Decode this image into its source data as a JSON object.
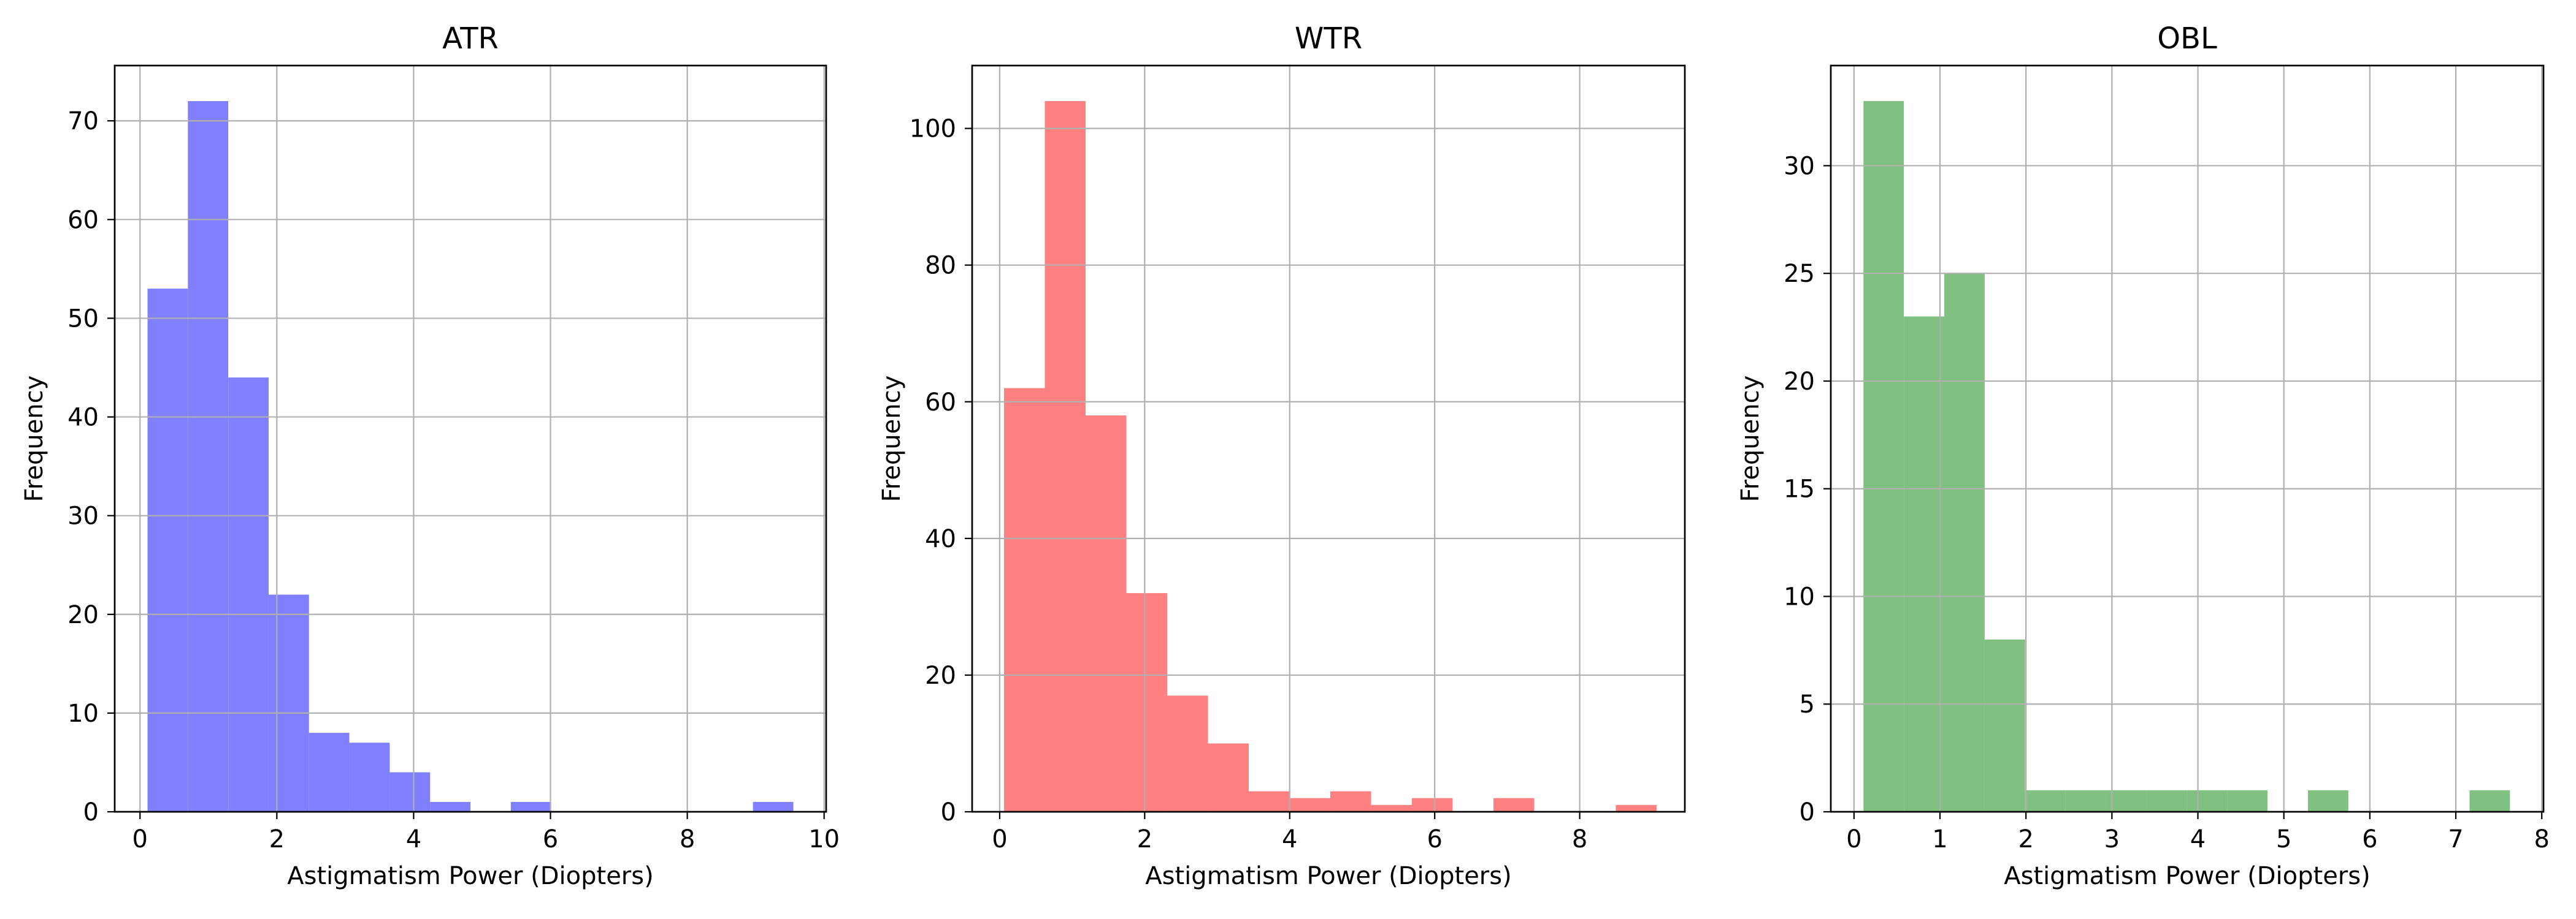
{
  "chart_data": [
    {
      "type": "bar",
      "title": "ATR",
      "xlabel": "Astigmatism Power (Diopters)",
      "ylabel": "Frequency",
      "xlim": [
        -0.37,
        10.03
      ],
      "ylim": [
        0,
        75.6
      ],
      "xticks": [
        0,
        2,
        4,
        6,
        8,
        10
      ],
      "yticks": [
        0,
        10,
        20,
        30,
        40,
        50,
        60,
        70
      ],
      "grid": true,
      "color": "#8080ff",
      "bin_width": 0.59,
      "bins": [
        {
          "x": 0.11,
          "value": 53
        },
        {
          "x": 0.7,
          "value": 72
        },
        {
          "x": 1.29,
          "value": 44
        },
        {
          "x": 1.88,
          "value": 22
        },
        {
          "x": 2.47,
          "value": 8
        },
        {
          "x": 3.06,
          "value": 7
        },
        {
          "x": 3.65,
          "value": 4
        },
        {
          "x": 4.24,
          "value": 1
        },
        {
          "x": 4.83,
          "value": 0
        },
        {
          "x": 5.42,
          "value": 1
        },
        {
          "x": 6.01,
          "value": 0
        },
        {
          "x": 6.6,
          "value": 0
        },
        {
          "x": 7.19,
          "value": 0
        },
        {
          "x": 7.78,
          "value": 0
        },
        {
          "x": 8.37,
          "value": 0
        },
        {
          "x": 8.96,
          "value": 1
        }
      ]
    },
    {
      "type": "bar",
      "title": "WTR",
      "xlabel": "Astigmatism Power (Diopters)",
      "ylabel": "Frequency",
      "xlim": [
        -0.38,
        9.45
      ],
      "ylim": [
        0,
        109.2
      ],
      "xticks": [
        0,
        2,
        4,
        6,
        8
      ],
      "yticks": [
        0,
        20,
        40,
        60,
        80,
        100
      ],
      "grid": true,
      "color": "#ff8080",
      "bin_width": 0.5625,
      "bins": [
        {
          "x": 0.06,
          "value": 62
        },
        {
          "x": 0.6225,
          "value": 104
        },
        {
          "x": 1.185,
          "value": 58
        },
        {
          "x": 1.7475,
          "value": 32
        },
        {
          "x": 2.31,
          "value": 17
        },
        {
          "x": 2.8725,
          "value": 10
        },
        {
          "x": 3.435,
          "value": 3
        },
        {
          "x": 3.9975,
          "value": 2
        },
        {
          "x": 4.56,
          "value": 3
        },
        {
          "x": 5.1225,
          "value": 1
        },
        {
          "x": 5.685,
          "value": 2
        },
        {
          "x": 6.2475,
          "value": 0
        },
        {
          "x": 6.81,
          "value": 2
        },
        {
          "x": 7.3725,
          "value": 0
        },
        {
          "x": 7.935,
          "value": 0
        },
        {
          "x": 8.4975,
          "value": 1
        }
      ]
    },
    {
      "type": "bar",
      "title": "OBL",
      "xlabel": "Astigmatism Power (Diopters)",
      "ylabel": "Frequency",
      "xlim": [
        -0.27,
        8.02
      ],
      "ylim": [
        0,
        34.65
      ],
      "xticks": [
        0,
        1,
        2,
        3,
        4,
        5,
        6,
        7,
        8
      ],
      "yticks": [
        0,
        5,
        10,
        15,
        20,
        25,
        30
      ],
      "grid": true,
      "color": "#80c080",
      "bin_width": 0.47,
      "bins": [
        {
          "x": 0.11,
          "value": 33
        },
        {
          "x": 0.58,
          "value": 23
        },
        {
          "x": 1.05,
          "value": 25
        },
        {
          "x": 1.52,
          "value": 8
        },
        {
          "x": 1.99,
          "value": 1
        },
        {
          "x": 2.46,
          "value": 1
        },
        {
          "x": 2.93,
          "value": 1
        },
        {
          "x": 3.4,
          "value": 1
        },
        {
          "x": 3.87,
          "value": 1
        },
        {
          "x": 4.34,
          "value": 1
        },
        {
          "x": 4.81,
          "value": 0
        },
        {
          "x": 5.28,
          "value": 1
        },
        {
          "x": 5.75,
          "value": 0
        },
        {
          "x": 6.22,
          "value": 0
        },
        {
          "x": 6.69,
          "value": 0
        },
        {
          "x": 7.16,
          "value": 1
        }
      ]
    }
  ]
}
